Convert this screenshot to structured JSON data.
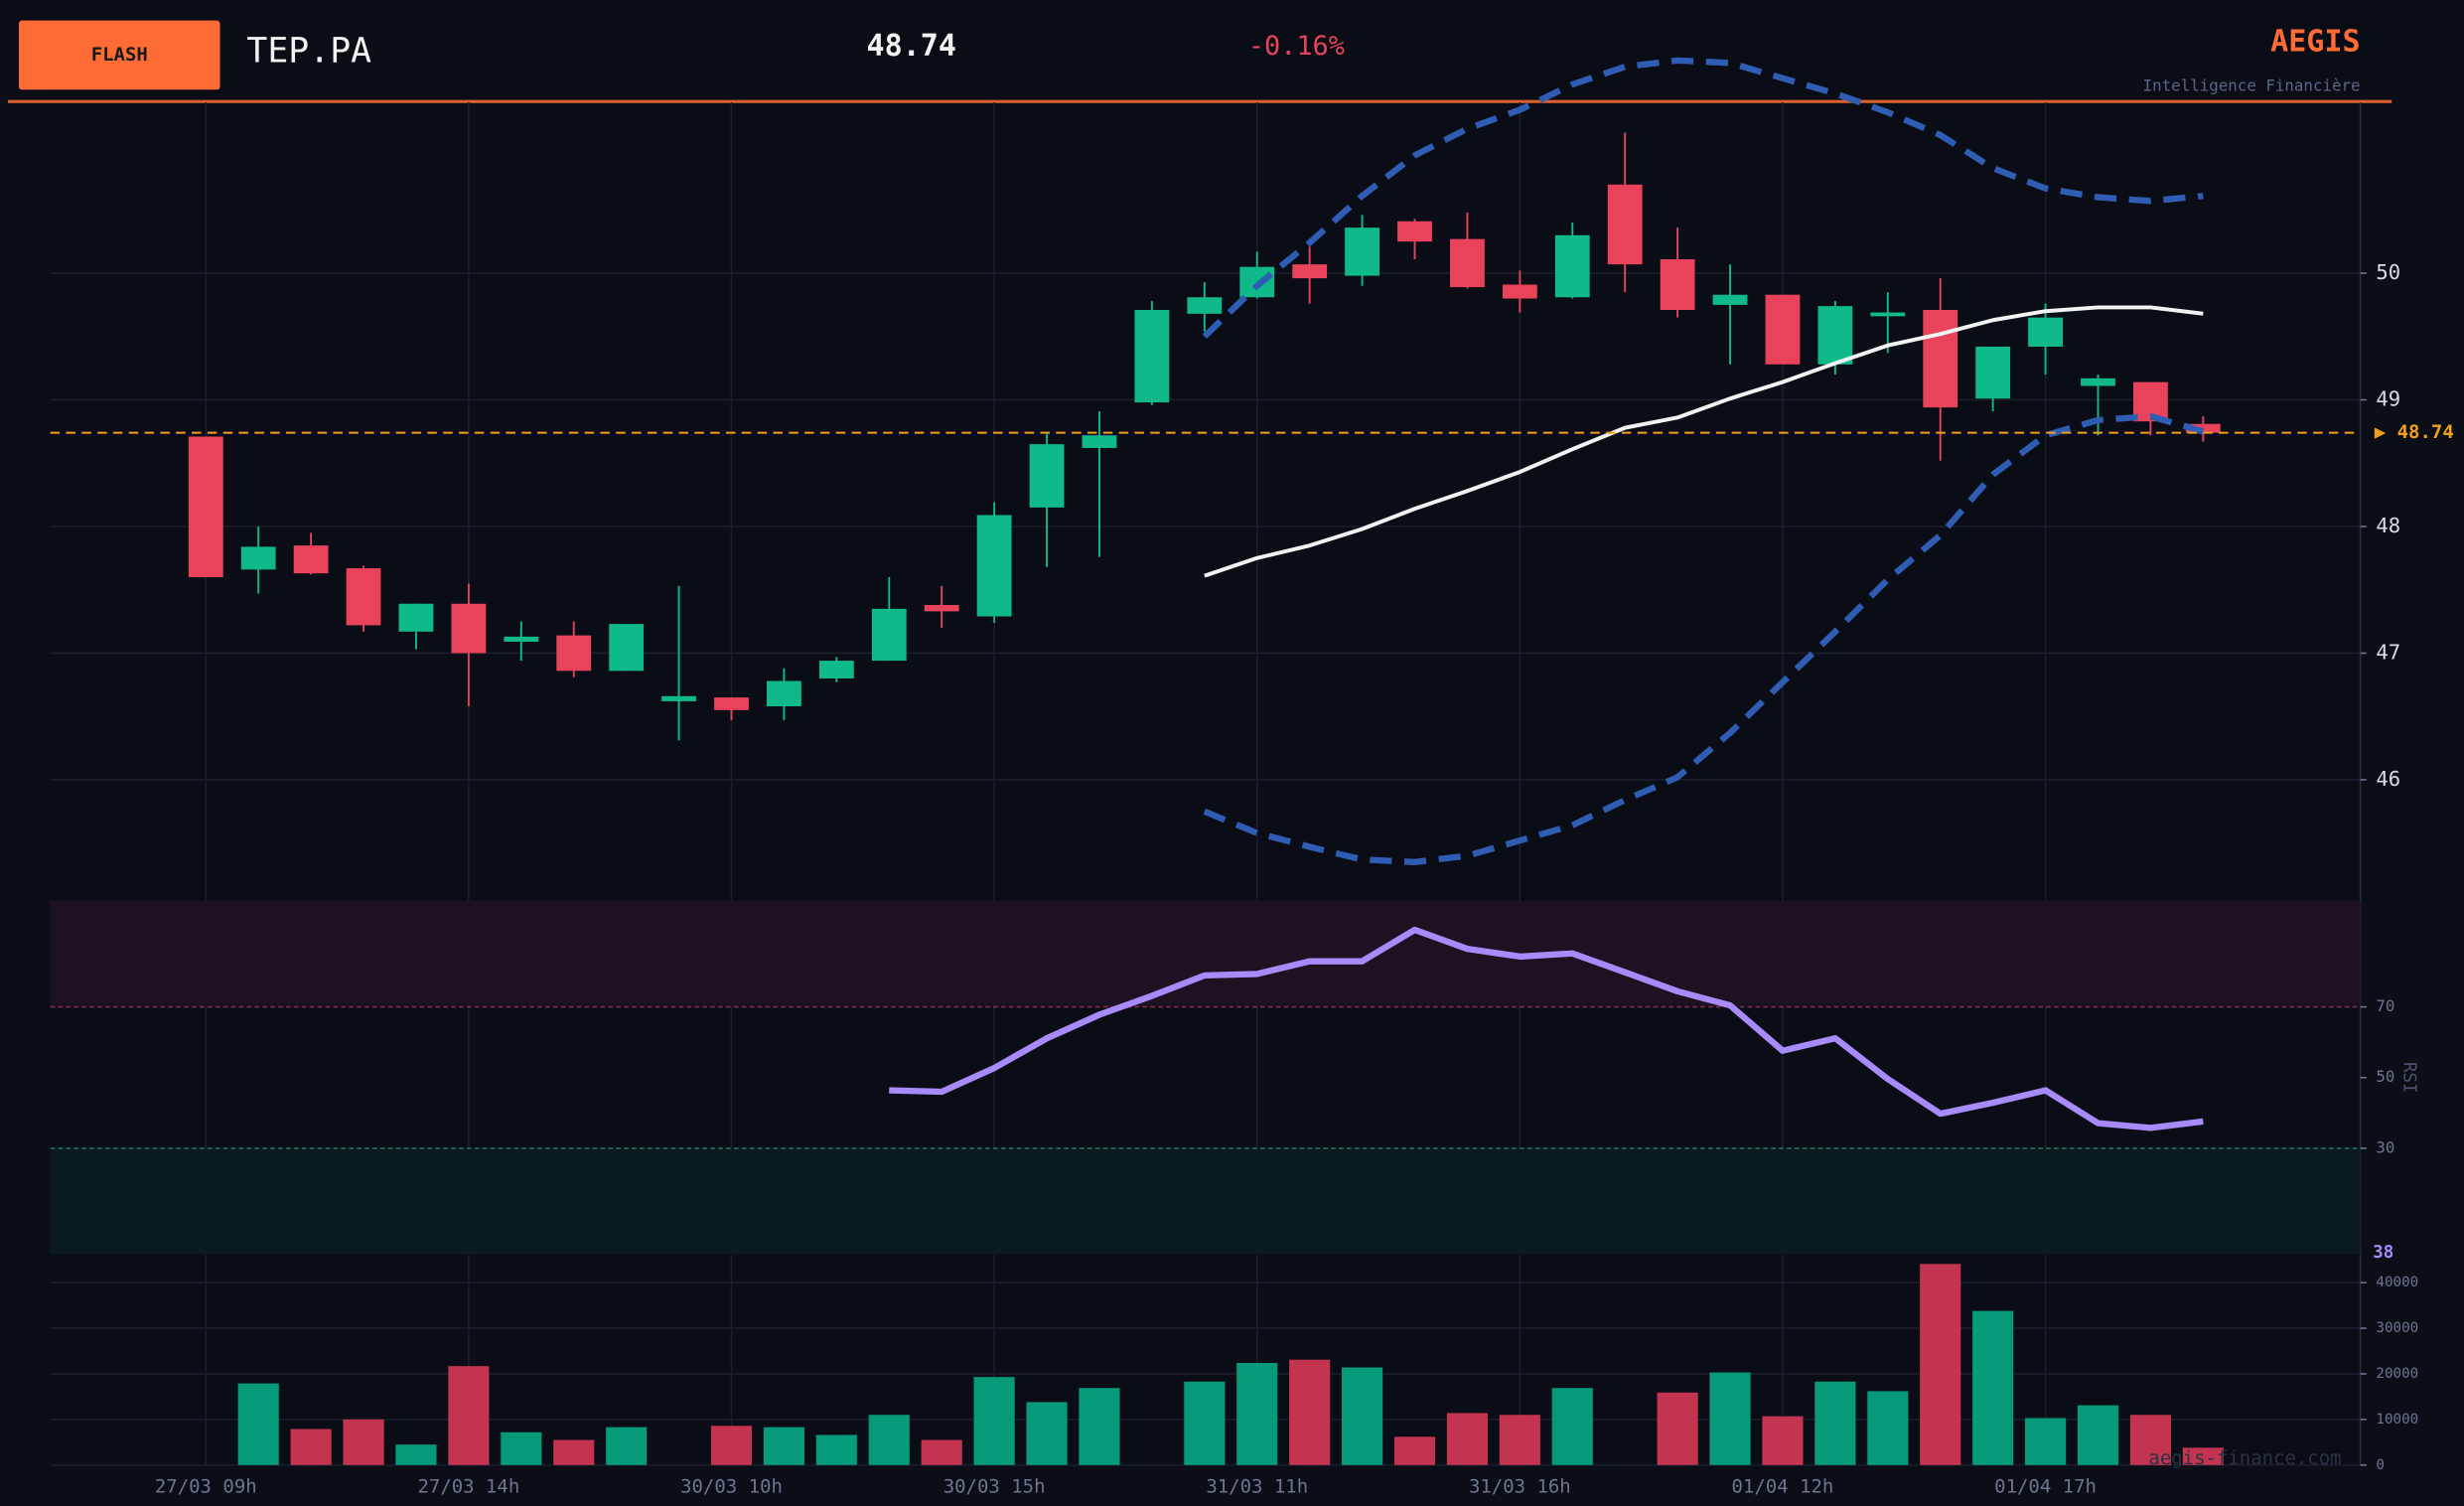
{
  "header": {
    "badge": "FLASH",
    "ticker": "TEP.PA",
    "price": "48.74",
    "change": "-0.16%",
    "brand": "AEGIS",
    "tagline": "Intelligence Financière",
    "watermark": "aegis-finance.com"
  },
  "chart_data": [
    {
      "type": "candlestick",
      "categories": [
        "27/03 09h",
        null,
        null,
        null,
        null,
        "27/03 14h",
        null,
        null,
        null,
        null,
        "30/03 10h",
        null,
        null,
        null,
        null,
        "30/03 15h",
        null,
        null,
        null,
        null,
        "31/03 11h",
        null,
        null,
        null,
        null,
        "31/03 16h",
        null,
        null,
        null,
        null,
        "01/04 12h",
        null,
        null,
        null,
        null,
        "01/04 17h",
        null,
        null,
        null
      ],
      "open": [
        48.71,
        47.66,
        47.85,
        47.67,
        47.17,
        47.39,
        47.09,
        47.14,
        46.86,
        46.62,
        46.65,
        46.58,
        46.8,
        46.94,
        47.38,
        47.29,
        48.15,
        48.62,
        48.98,
        49.68,
        49.81,
        50.07,
        49.98,
        50.41,
        50.27,
        49.91,
        49.81,
        50.7,
        50.11,
        49.75,
        49.83,
        49.28,
        49.66,
        49.71,
        49.01,
        49.42,
        49.11,
        49.14,
        48.81
      ],
      "high": [
        48.71,
        48.0,
        47.95,
        47.69,
        47.39,
        47.55,
        47.25,
        47.25,
        47.23,
        47.53,
        46.65,
        46.88,
        46.97,
        47.6,
        47.53,
        48.19,
        48.73,
        48.91,
        49.78,
        49.93,
        50.17,
        50.21,
        50.46,
        50.43,
        50.48,
        50.02,
        50.4,
        51.11,
        50.36,
        50.07,
        49.83,
        49.78,
        49.85,
        49.96,
        49.42,
        49.76,
        49.2,
        49.14,
        48.87
      ],
      "low": [
        47.6,
        47.47,
        47.62,
        47.17,
        47.03,
        46.58,
        46.94,
        46.81,
        46.86,
        46.31,
        46.47,
        46.47,
        46.77,
        46.94,
        47.2,
        47.24,
        47.68,
        47.76,
        48.96,
        49.54,
        49.8,
        49.76,
        49.9,
        50.11,
        49.88,
        49.69,
        49.8,
        49.85,
        49.65,
        49.28,
        49.28,
        49.2,
        49.37,
        48.52,
        48.91,
        49.2,
        48.72,
        48.72,
        48.67
      ],
      "close": [
        47.6,
        47.84,
        47.63,
        47.22,
        47.39,
        47.0,
        47.13,
        46.86,
        47.23,
        46.66,
        46.55,
        46.78,
        46.94,
        47.35,
        47.33,
        48.09,
        48.65,
        48.72,
        49.71,
        49.81,
        50.05,
        49.96,
        50.36,
        50.25,
        49.89,
        49.8,
        50.3,
        50.07,
        49.71,
        49.83,
        49.28,
        49.74,
        49.69,
        48.94,
        49.42,
        49.65,
        49.17,
        48.83,
        48.74
      ],
      "up_color": "#10b98a",
      "down_color": "#e8435a",
      "series": [
        {
          "color": "#f2f2f2",
          "values": [
            null,
            null,
            null,
            null,
            null,
            null,
            null,
            null,
            null,
            null,
            null,
            null,
            null,
            null,
            null,
            null,
            null,
            null,
            null,
            47.61,
            47.75,
            47.85,
            47.98,
            48.14,
            48.28,
            48.43,
            48.61,
            48.78,
            48.86,
            49.01,
            49.14,
            49.29,
            49.43,
            49.52,
            49.63,
            49.7,
            49.73,
            49.73,
            49.68
          ]
        },
        {
          "color": "#2f5db3",
          "dashed": true,
          "values": [
            null,
            null,
            null,
            null,
            null,
            null,
            null,
            null,
            null,
            null,
            null,
            null,
            null,
            null,
            null,
            null,
            null,
            null,
            null,
            49.5,
            49.9,
            50.24,
            50.61,
            50.93,
            51.14,
            51.29,
            51.49,
            51.63,
            51.68,
            51.66,
            51.54,
            51.42,
            51.27,
            51.09,
            50.83,
            50.67,
            50.6,
            50.57,
            50.61
          ]
        },
        {
          "color": "#2f5db3",
          "dashed": true,
          "values": [
            null,
            null,
            null,
            null,
            null,
            null,
            null,
            null,
            null,
            null,
            null,
            null,
            null,
            null,
            null,
            null,
            null,
            null,
            null,
            45.75,
            45.58,
            45.47,
            45.37,
            45.35,
            45.4,
            45.52,
            45.64,
            45.84,
            46.02,
            46.37,
            46.77,
            47.17,
            47.58,
            47.93,
            48.41,
            48.72,
            48.84,
            48.87,
            48.75
          ]
        }
      ],
      "last_price": {
        "value": 48.74,
        "label": "▶ 48.74",
        "color": "#f0a020"
      },
      "ylim": [
        45.15,
        51.35
      ],
      "yticks": [
        46,
        47,
        48,
        49,
        50
      ],
      "grid": true
    },
    {
      "type": "line",
      "y_label": "RSI",
      "color": "#a78bfa",
      "values": [
        null,
        null,
        null,
        null,
        null,
        null,
        null,
        null,
        null,
        null,
        null,
        null,
        null,
        46.4,
        46.0,
        52.7,
        61.1,
        67.8,
        73.1,
        78.9,
        79.3,
        82.9,
        82.9,
        91.8,
        86.4,
        84.2,
        85.1,
        79.8,
        74.4,
        70.4,
        57.6,
        61.1,
        49.6,
        39.8,
        42.9,
        46.4,
        37.1,
        35.8,
        37.6
      ],
      "value_labels": [
        null,
        null,
        null,
        null,
        null,
        null,
        null,
        null,
        null,
        null,
        null,
        null,
        null,
        null,
        null,
        null,
        null,
        null,
        null,
        null,
        null,
        null,
        null,
        null,
        null,
        null,
        null,
        null,
        null,
        null,
        null,
        null,
        null,
        null,
        null,
        null,
        null,
        null,
        "38"
      ],
      "overbought": 70,
      "oversold": 30,
      "overbought_color": "#1c1222",
      "oversold_color": "#0a1a1e",
      "ylim": [
        0,
        100
      ],
      "yticks": [
        30,
        50,
        70
      ]
    },
    {
      "type": "bar",
      "up_color": "#069a78",
      "down_color": "#c2344f",
      "values": [
        null,
        17900,
        7900,
        10000,
        4500,
        21700,
        7200,
        5500,
        8300,
        null,
        8600,
        8300,
        6600,
        11000,
        5500,
        19300,
        13800,
        16900,
        null,
        18300,
        22400,
        23100,
        21400,
        6200,
        11400,
        11000,
        16900,
        null,
        15900,
        20300,
        10700,
        18300,
        16200,
        44100,
        33800,
        10300,
        13100,
        11000,
        3800
      ],
      "ylim": [
        0,
        45500
      ],
      "yticks": [
        0,
        10000,
        20000,
        30000,
        40000
      ]
    }
  ]
}
